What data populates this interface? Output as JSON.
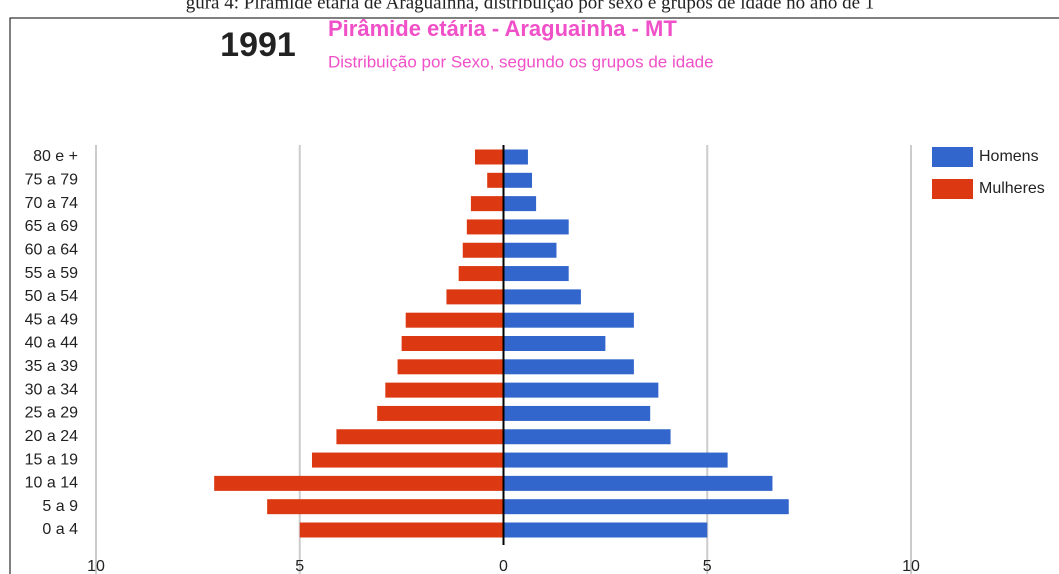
{
  "caption": "gura 4: Pirâmide etária de Araguainha, distribuição por sexo e grupos de idade no ano de 1",
  "chart_data": {
    "type": "pyramid",
    "year": "1991",
    "title": "Pirâmide etária - Araguainha - MT",
    "subtitle": "Distribuição por Sexo, segundo os grupos de idade",
    "categories": [
      "80 e +",
      "75 a 79",
      "70 a 74",
      "65 a 69",
      "60 a 64",
      "55 a 59",
      "50 a 54",
      "45 a 49",
      "40 a 44",
      "35 a 39",
      "30 a 34",
      "25 a 29",
      "20 a 24",
      "15 a 19",
      "10 a 14",
      "5 a 9",
      "0 a 4"
    ],
    "series": [
      {
        "name": "Homens",
        "color": "#3366cc",
        "values": [
          0.6,
          0.7,
          0.8,
          1.6,
          1.3,
          1.6,
          1.9,
          3.2,
          2.5,
          3.2,
          3.8,
          3.6,
          4.1,
          5.5,
          6.6,
          7.0,
          5.0
        ]
      },
      {
        "name": "Mulheres",
        "color": "#dc3912",
        "values": [
          0.7,
          0.4,
          0.8,
          0.9,
          1.0,
          1.1,
          1.4,
          2.4,
          2.5,
          2.6,
          2.9,
          3.1,
          4.1,
          4.7,
          7.1,
          5.8,
          5.0
        ]
      }
    ],
    "xlim": [
      -10,
      10
    ],
    "xticks": [
      {
        "value": -10,
        "label": "10"
      },
      {
        "value": -5,
        "label": "5"
      },
      0,
      5,
      10
    ],
    "grid": true,
    "legend": "right"
  }
}
